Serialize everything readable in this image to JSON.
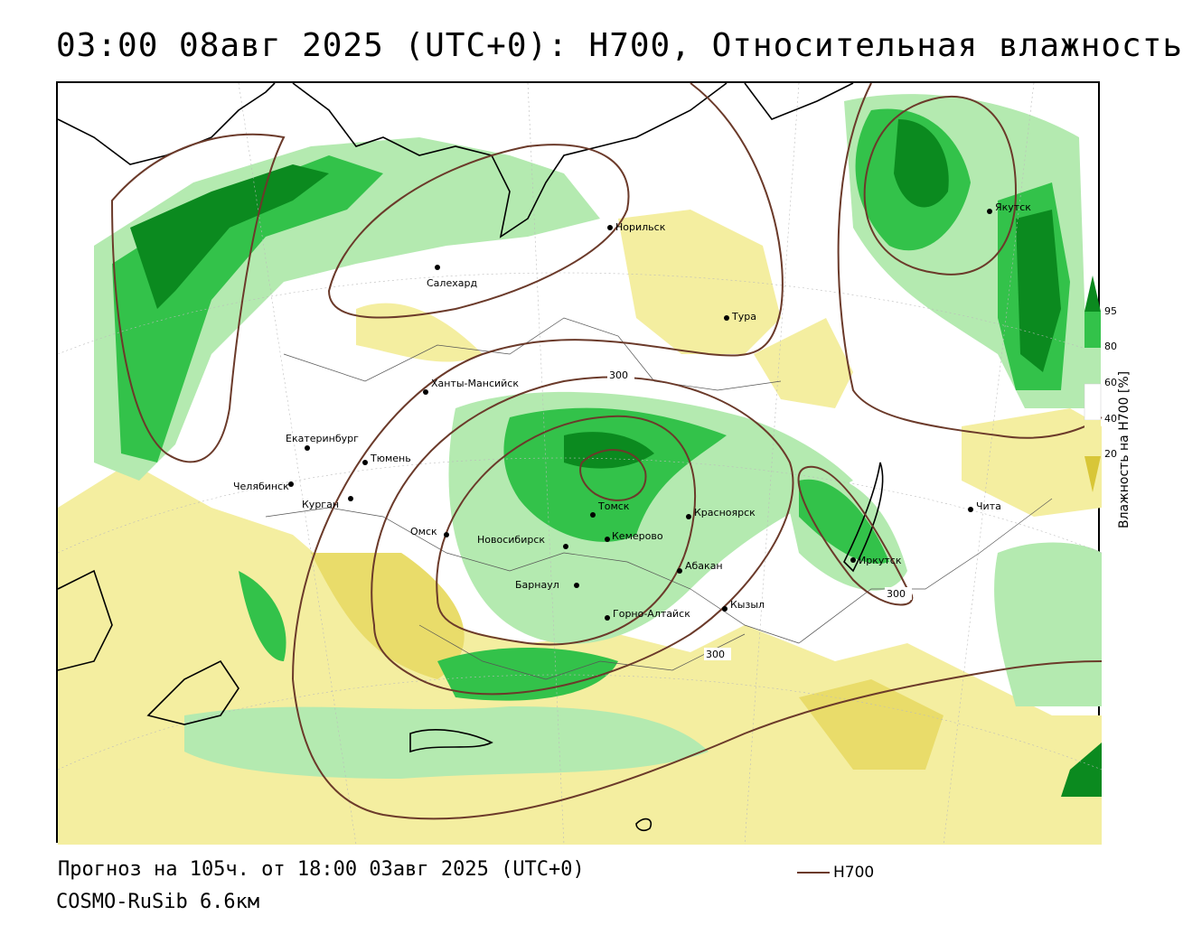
{
  "title": "03:00 08авг 2025 (UTC+0): H700, Относительная влажность",
  "footer": {
    "forecast": "Прогноз на 105ч. от 18:00 03авг 2025 (UTC+0)",
    "model": "COSMO-RuSib 6.6км",
    "contour_legend": "H700"
  },
  "colorbar": {
    "label": "Влажность на H700 [%]",
    "ticks": [
      "95",
      "80",
      "60",
      "40",
      "20"
    ],
    "colors": {
      "c95": "#0b8a1f",
      "c80": "#33c24a",
      "c60": "#b4eab0",
      "c40": "#ffffff",
      "c20": "#f4eea0",
      "c0": "#d8c638"
    }
  },
  "contour_color": "#6b3a2a",
  "contour_labels": [
    "300",
    "300",
    "300"
  ],
  "cities": [
    {
      "name": "Норильск"
    },
    {
      "name": "Салехард"
    },
    {
      "name": "Тура"
    },
    {
      "name": "Якутск"
    },
    {
      "name": "Ханты-Мансийск"
    },
    {
      "name": "Екатеринбург"
    },
    {
      "name": "Тюмень"
    },
    {
      "name": "Челябинск"
    },
    {
      "name": "Курган"
    },
    {
      "name": "Омск"
    },
    {
      "name": "Новосибирск"
    },
    {
      "name": "Томск"
    },
    {
      "name": "Кемерово"
    },
    {
      "name": "Красноярск"
    },
    {
      "name": "Барнаул"
    },
    {
      "name": "Абакан"
    },
    {
      "name": "Горно-Алтайск"
    },
    {
      "name": "Кызыл"
    },
    {
      "name": "Иркутск"
    },
    {
      "name": "Чита"
    }
  ]
}
